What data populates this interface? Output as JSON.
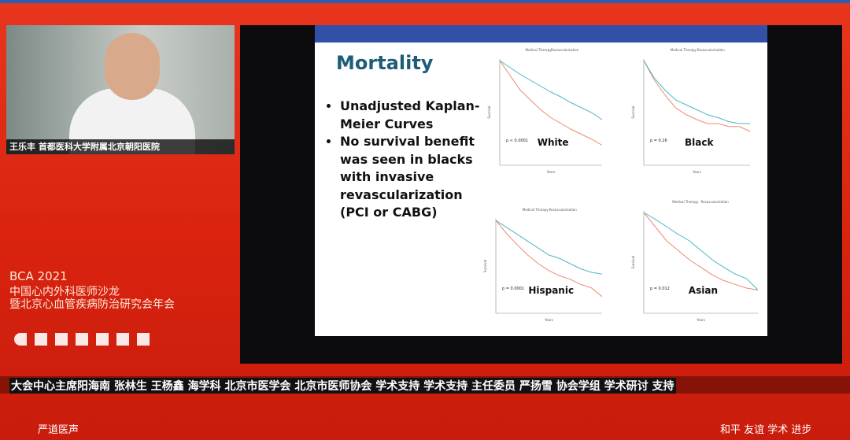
{
  "speaker": {
    "caption": "王乐丰  首都医科大学附属北京朝阳医院"
  },
  "slide": {
    "title": "Mortality",
    "bullets": [
      "Unadjusted Kaplan-Meier Curves",
      "No survival benefit was seen in blacks with invasive revascularization (PCI or CABG)"
    ],
    "legend": [
      "Medical Therapy",
      "Revascularization"
    ],
    "x_axis": "Years",
    "y_axis": "Survival",
    "panels": [
      {
        "group": "White",
        "p": "p < 0.0001"
      },
      {
        "group": "Black",
        "p": "p = 0.26"
      },
      {
        "group": "Hispanic",
        "p": "p = 0.0001"
      },
      {
        "group": "Asian",
        "p": "p = 0.012"
      }
    ]
  },
  "event": {
    "name": "BCA 2021",
    "line1": "中国心内外科医师沙龙",
    "line2": "暨北京心血管疾病防治研究会年会"
  },
  "ticker": "大会中心主席阳海南 张林生 王杨鑫 海学科 北京市医学会 北京市医师协会 学术支持 学术支持 主任委员 严扬雪 协会学组 学术研讨 支持",
  "footer": {
    "left": "严道医声",
    "right": "和平 友谊 学术 进步"
  }
}
